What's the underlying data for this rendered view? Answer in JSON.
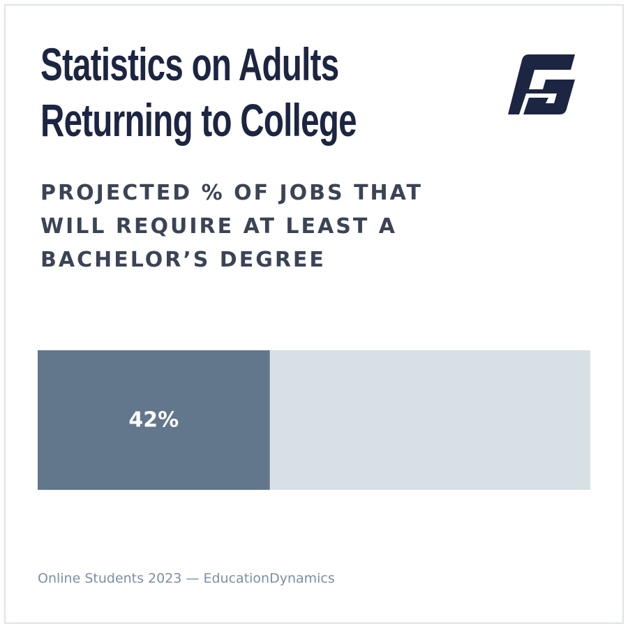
{
  "chart_data": {
    "type": "progress",
    "title": "Statistics on Adults Returning to College",
    "subtitle": "PROJECTED % OF JOBS THAT WILL REQUIRE AT LEAST A BACHELOR’S DEGREE",
    "values": [
      42
    ],
    "value_labels": [
      "42%"
    ],
    "color": "#62768c",
    "track_color": "#d7e0e5",
    "xlim": [
      0,
      100
    ],
    "source": "Online Students 2023 — EducationDynamics"
  }
}
